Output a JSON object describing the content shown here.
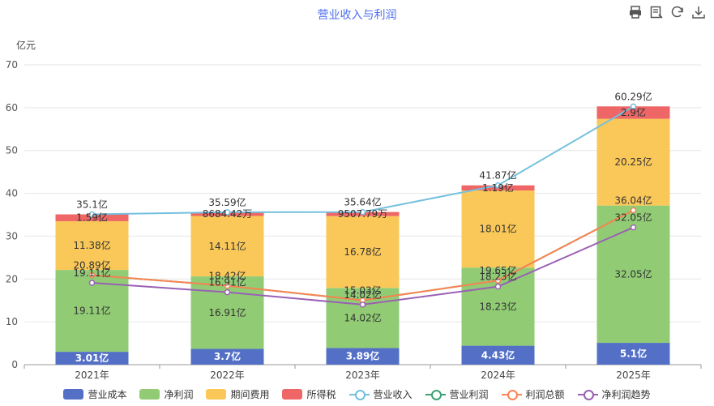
{
  "toolbar": {
    "icons": [
      "print-icon",
      "data-view-icon",
      "refresh-icon",
      "download-icon"
    ]
  },
  "chart_data": {
    "type": "bar",
    "title": "营业收入与利润",
    "y_unit": "亿元",
    "ylim": [
      0,
      70
    ],
    "yticks": [
      0,
      10,
      20,
      30,
      40,
      50,
      60,
      70
    ],
    "grid": true,
    "legend_position": "bottom",
    "categories": [
      "2021年",
      "2022年",
      "2023年",
      "2024年",
      "2025年"
    ],
    "stacked_series": [
      {
        "name": "营业成本",
        "color": "#5470c6",
        "values": [
          3.01,
          3.7,
          3.89,
          4.43,
          5.1
        ],
        "labels": [
          "3.01亿",
          "3.7亿",
          "3.89亿",
          "4.43亿",
          "5.1亿"
        ]
      },
      {
        "name": "净利润",
        "color": "#91cc75",
        "values": [
          19.11,
          16.91,
          14.02,
          18.23,
          32.05
        ],
        "labels": [
          "19.11亿",
          "16.91亿",
          "14.02亿",
          "18.23亿",
          "32.05亿"
        ]
      },
      {
        "name": "期间费用",
        "color": "#fac858",
        "values": [
          11.38,
          14.11,
          16.78,
          18.01,
          20.25
        ],
        "labels": [
          "11.38亿",
          "14.11亿",
          "16.78亿",
          "18.01亿",
          "20.25亿"
        ]
      },
      {
        "name": "所得税",
        "color": "#ee6666",
        "values": [
          1.59,
          0.87,
          0.95,
          1.19,
          2.9
        ],
        "labels": [
          "1.59亿",
          "8684.42万",
          "9507.79万",
          "1.19亿",
          "2.9亿"
        ]
      }
    ],
    "line_series": [
      {
        "name": "营业收入",
        "color": "#73c0de",
        "values": [
          35.1,
          35.59,
          35.64,
          41.87,
          60.29
        ],
        "labels": [
          "35.1亿",
          "35.59亿",
          "35.64亿",
          "41.87亿",
          "60.29亿"
        ]
      },
      {
        "name": "营业利润",
        "color": "#3ba272",
        "values": [
          20.89,
          18.42,
          15.03,
          19.65,
          36.04
        ],
        "labels": [
          "20.89亿",
          "18.42亿",
          "15.03亿",
          "19.65亿",
          "36.04亿"
        ]
      },
      {
        "name": "利润总额",
        "color": "#fc8452",
        "values": [
          20.89,
          18.42,
          15.03,
          19.65,
          36.04
        ],
        "labels": []
      },
      {
        "name": "净利润趋势",
        "color": "#9a60b4",
        "values": [
          19.11,
          16.91,
          14.02,
          18.23,
          32.05
        ],
        "labels": [
          "19.11亿",
          "16.91亿",
          "14.02亿",
          "18.23亿",
          "32.05亿"
        ]
      }
    ]
  }
}
